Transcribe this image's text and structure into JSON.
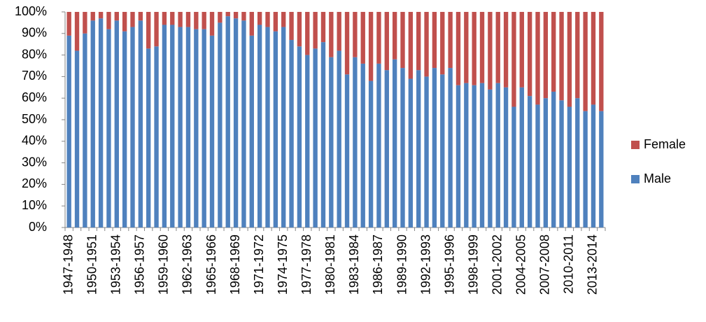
{
  "chart_data": {
    "type": "stacked_bar_100",
    "categories": [
      "1947-1948",
      null,
      null,
      "1950-1951",
      null,
      null,
      "1953-1954",
      null,
      null,
      "1956-1957",
      null,
      null,
      "1959-1960",
      null,
      null,
      "1962-1963",
      null,
      null,
      "1965-1966",
      null,
      null,
      "1968-1969",
      null,
      null,
      "1971-1972",
      null,
      null,
      "1974-1975",
      null,
      null,
      "1977-1978",
      null,
      null,
      "1980-1981",
      null,
      null,
      "1983-1984",
      null,
      null,
      "1986-1987",
      null,
      null,
      "1989-1990",
      null,
      null,
      "1992-1993",
      null,
      null,
      "1995-1996",
      null,
      null,
      "1998-1999",
      null,
      null,
      "2001-2002",
      null,
      null,
      "2004-2005",
      null,
      null,
      "2007-2008",
      null,
      null,
      "2010-2011",
      null,
      null,
      "2013-2014",
      null
    ],
    "series": [
      {
        "name": "Male",
        "color": "#4f81bd",
        "values": [
          89,
          82,
          90,
          96,
          97,
          92,
          96,
          91,
          93,
          96,
          83,
          84,
          94,
          94,
          93,
          93,
          92,
          92,
          89,
          95,
          98,
          97,
          96,
          89,
          94,
          93,
          91,
          93,
          87,
          84,
          80,
          83,
          86,
          79,
          82,
          71,
          79,
          76,
          68,
          76,
          73,
          78,
          74,
          69,
          73,
          70,
          74,
          71,
          74,
          66,
          67,
          66,
          67,
          64,
          67,
          65,
          56,
          65,
          61,
          57,
          60,
          63,
          59,
          56,
          60,
          54,
          57,
          54
        ]
      },
      {
        "name": "Female",
        "color": "#c0504d",
        "values": [
          11,
          18,
          10,
          4,
          3,
          8,
          4,
          9,
          7,
          4,
          17,
          16,
          6,
          6,
          7,
          7,
          8,
          8,
          11,
          5,
          2,
          3,
          4,
          11,
          6,
          7,
          9,
          7,
          13,
          16,
          20,
          17,
          14,
          21,
          18,
          29,
          21,
          24,
          32,
          24,
          27,
          22,
          26,
          31,
          27,
          30,
          26,
          29,
          26,
          34,
          33,
          34,
          33,
          36,
          33,
          35,
          44,
          35,
          39,
          43,
          40,
          37,
          41,
          44,
          40,
          46,
          43,
          46
        ]
      }
    ],
    "ylim": [
      0,
      100
    ],
    "yticks": [
      {
        "value": 0,
        "label": "0%"
      },
      {
        "value": 10,
        "label": "10%"
      },
      {
        "value": 20,
        "label": "20%"
      },
      {
        "value": 30,
        "label": "30%"
      },
      {
        "value": 40,
        "label": "40%"
      },
      {
        "value": 50,
        "label": "50%"
      },
      {
        "value": 60,
        "label": "60%"
      },
      {
        "value": 70,
        "label": "70%"
      },
      {
        "value": 80,
        "label": "80%"
      },
      {
        "value": 90,
        "label": "90%"
      },
      {
        "value": 100,
        "label": "100%"
      }
    ],
    "grid": false,
    "legend": "right"
  }
}
